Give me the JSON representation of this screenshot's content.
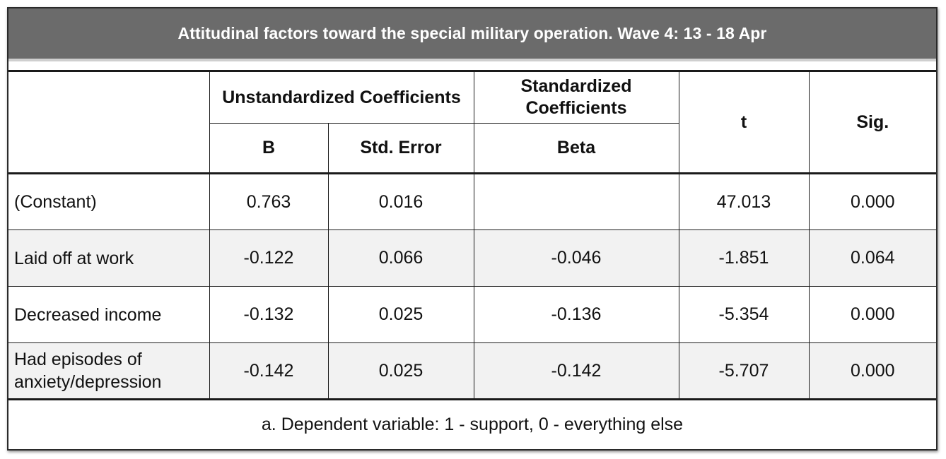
{
  "chart_data": {
    "type": "table",
    "title": "Attitudinal factors toward the special military operation. Wave 4: 13 - 18 Apr",
    "header": {
      "group_unstandardized": "Unstandardized Coefficients",
      "group_standardized": "Standardized Coefficients",
      "col_b": "B",
      "col_std_error": "Std. Error",
      "col_beta": "Beta",
      "col_t": "t",
      "col_sig": "Sig."
    },
    "rows": [
      {
        "label": "(Constant)",
        "b": "0.763",
        "std_error": "0.016",
        "beta": "",
        "t": "47.013",
        "sig": "0.000"
      },
      {
        "label": "Laid off at work",
        "b": "-0.122",
        "std_error": "0.066",
        "beta": "-0.046",
        "t": "-1.851",
        "sig": "0.064"
      },
      {
        "label": "Decreased income",
        "b": "-0.132",
        "std_error": "0.025",
        "beta": "-0.136",
        "t": "-5.354",
        "sig": "0.000"
      },
      {
        "label": "Had episodes of anxiety/depression",
        "b": "-0.142",
        "std_error": "0.025",
        "beta": "-0.142",
        "t": "-5.707",
        "sig": "0.000"
      }
    ],
    "footnote": "a. Dependent variable: 1 - support, 0 - everything else"
  },
  "colors": {
    "title_bar": "#6b6b6b",
    "title_text": "#ffffff",
    "alt_row": "#f2f2f2",
    "border": "#1a1a1a"
  }
}
